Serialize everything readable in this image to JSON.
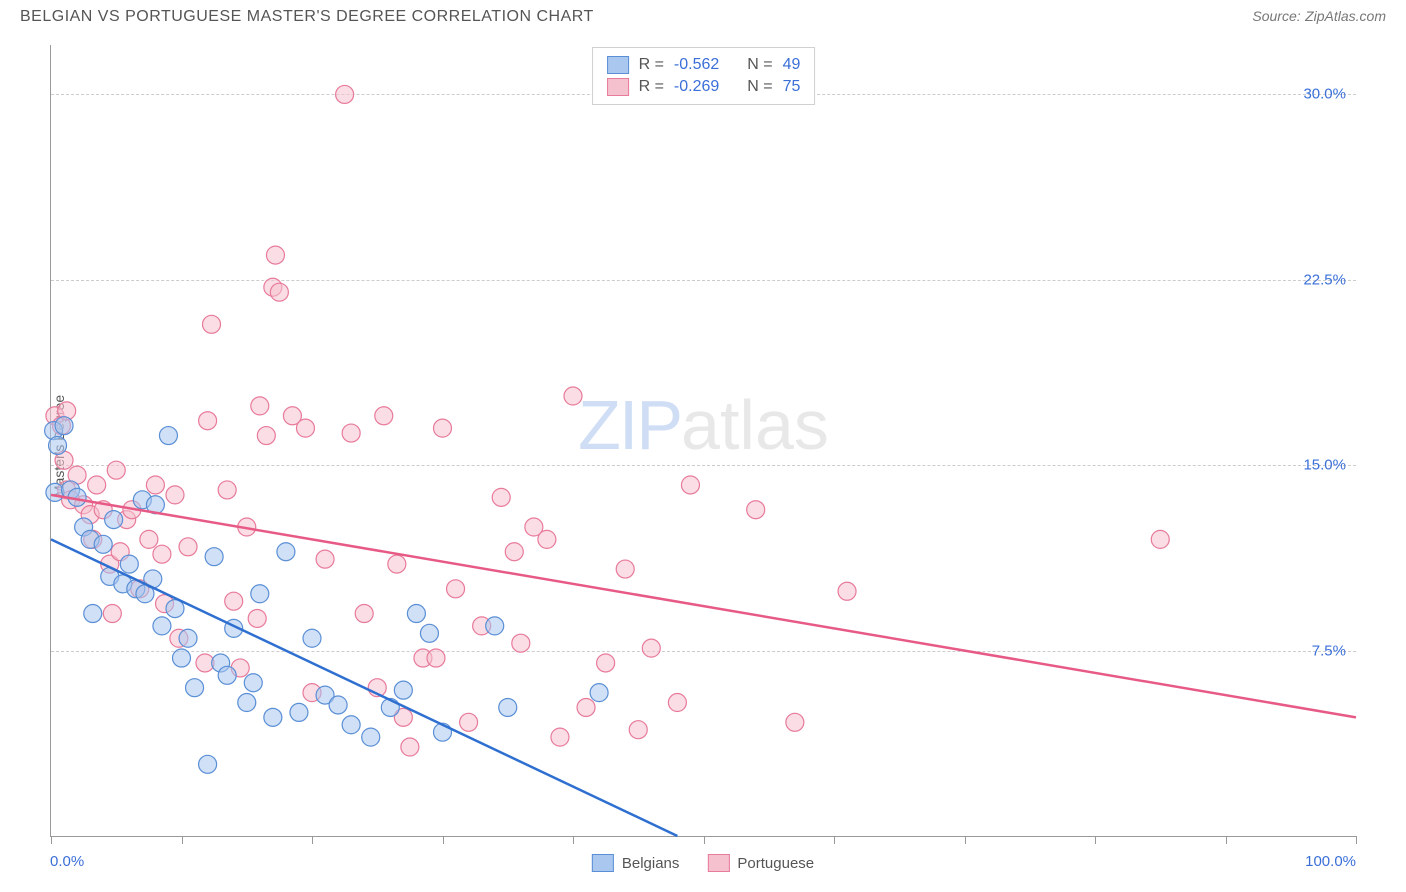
{
  "title": "BELGIAN VS PORTUGUESE MASTER'S DEGREE CORRELATION CHART",
  "source_label": "Source:",
  "source_name": "ZipAtlas.com",
  "ylabel": "Master's Degree",
  "watermark_zip": "ZIP",
  "watermark_atlas": "atlas",
  "chart": {
    "type": "scatter",
    "xlim": [
      0,
      100
    ],
    "ylim": [
      0,
      32
    ],
    "x_start_label": "0.0%",
    "x_end_label": "100.0%",
    "y_ticks": [
      {
        "v": 7.5,
        "label": "7.5%"
      },
      {
        "v": 15.0,
        "label": "15.0%"
      },
      {
        "v": 22.5,
        "label": "22.5%"
      },
      {
        "v": 30.0,
        "label": "30.0%"
      }
    ],
    "x_tick_step": 10,
    "background_color": "#ffffff",
    "grid_color": "#cccccc",
    "point_radius": 9,
    "point_opacity": 0.55,
    "series": [
      {
        "name": "Belgians",
        "color_fill": "#a9c7ef",
        "color_stroke": "#5a8fd6",
        "reg_color": "#2e6fd0",
        "R": "-0.562",
        "N": "49",
        "reg_line": {
          "x1": 0,
          "y1": 12.0,
          "x2": 48,
          "y2": 0
        },
        "points": [
          [
            0.2,
            16.4
          ],
          [
            0.5,
            15.8
          ],
          [
            0.3,
            13.9
          ],
          [
            1.0,
            16.6
          ],
          [
            1.5,
            14.0
          ],
          [
            2.0,
            13.7
          ],
          [
            2.5,
            12.5
          ],
          [
            3.0,
            12.0
          ],
          [
            3.2,
            9.0
          ],
          [
            4.0,
            11.8
          ],
          [
            4.5,
            10.5
          ],
          [
            4.8,
            12.8
          ],
          [
            5.5,
            10.2
          ],
          [
            6.0,
            11.0
          ],
          [
            6.5,
            10.0
          ],
          [
            7.0,
            13.6
          ],
          [
            7.2,
            9.8
          ],
          [
            7.8,
            10.4
          ],
          [
            8.0,
            13.4
          ],
          [
            8.5,
            8.5
          ],
          [
            9.0,
            16.2
          ],
          [
            9.5,
            9.2
          ],
          [
            10.0,
            7.2
          ],
          [
            10.5,
            8.0
          ],
          [
            11.0,
            6.0
          ],
          [
            12.0,
            2.9
          ],
          [
            12.5,
            11.3
          ],
          [
            13.0,
            7.0
          ],
          [
            13.5,
            6.5
          ],
          [
            14.0,
            8.4
          ],
          [
            15.0,
            5.4
          ],
          [
            15.5,
            6.2
          ],
          [
            16.0,
            9.8
          ],
          [
            17.0,
            4.8
          ],
          [
            18.0,
            11.5
          ],
          [
            19.0,
            5.0
          ],
          [
            20.0,
            8.0
          ],
          [
            21.0,
            5.7
          ],
          [
            22.0,
            5.3
          ],
          [
            23.0,
            4.5
          ],
          [
            24.5,
            4.0
          ],
          [
            26.0,
            5.2
          ],
          [
            27.0,
            5.9
          ],
          [
            28.0,
            9.0
          ],
          [
            29.0,
            8.2
          ],
          [
            30.0,
            4.2
          ],
          [
            34.0,
            8.5
          ],
          [
            35.0,
            5.2
          ],
          [
            42.0,
            5.8
          ]
        ]
      },
      {
        "name": "Portuguese",
        "color_fill": "#f6c1cf",
        "color_stroke": "#e87a9a",
        "reg_color": "#e85a86",
        "R": "-0.269",
        "N": "75",
        "reg_line": {
          "x1": 0,
          "y1": 13.8,
          "x2": 100,
          "y2": 4.8
        },
        "points": [
          [
            0.3,
            17.0
          ],
          [
            0.8,
            16.6
          ],
          [
            1.0,
            15.2
          ],
          [
            1.2,
            14.0
          ],
          [
            1.2,
            17.2
          ],
          [
            1.5,
            13.6
          ],
          [
            2.0,
            14.6
          ],
          [
            2.5,
            13.4
          ],
          [
            3.0,
            13.0
          ],
          [
            3.2,
            12.0
          ],
          [
            3.5,
            14.2
          ],
          [
            4.0,
            13.2
          ],
          [
            4.5,
            11.0
          ],
          [
            4.7,
            9.0
          ],
          [
            5.0,
            14.8
          ],
          [
            5.3,
            11.5
          ],
          [
            5.8,
            12.8
          ],
          [
            6.2,
            13.2
          ],
          [
            6.8,
            10.0
          ],
          [
            7.5,
            12.0
          ],
          [
            8.0,
            14.2
          ],
          [
            8.5,
            11.4
          ],
          [
            8.7,
            9.4
          ],
          [
            9.5,
            13.8
          ],
          [
            9.8,
            8.0
          ],
          [
            10.5,
            11.7
          ],
          [
            11.8,
            7.0
          ],
          [
            12.0,
            16.8
          ],
          [
            12.3,
            20.7
          ],
          [
            13.5,
            14.0
          ],
          [
            14.0,
            9.5
          ],
          [
            14.5,
            6.8
          ],
          [
            15.0,
            12.5
          ],
          [
            15.8,
            8.8
          ],
          [
            16.0,
            17.4
          ],
          [
            16.5,
            16.2
          ],
          [
            17.0,
            22.2
          ],
          [
            17.2,
            23.5
          ],
          [
            17.5,
            22.0
          ],
          [
            18.5,
            17.0
          ],
          [
            19.5,
            16.5
          ],
          [
            20.0,
            5.8
          ],
          [
            21.0,
            11.2
          ],
          [
            22.5,
            30.0
          ],
          [
            23.0,
            16.3
          ],
          [
            24.0,
            9.0
          ],
          [
            25.0,
            6.0
          ],
          [
            25.5,
            17.0
          ],
          [
            26.5,
            11.0
          ],
          [
            27.0,
            4.8
          ],
          [
            27.5,
            3.6
          ],
          [
            28.5,
            7.2
          ],
          [
            29.5,
            7.2
          ],
          [
            30.0,
            16.5
          ],
          [
            31.0,
            10.0
          ],
          [
            32.0,
            4.6
          ],
          [
            33.0,
            8.5
          ],
          [
            34.5,
            13.7
          ],
          [
            35.5,
            11.5
          ],
          [
            36.0,
            7.8
          ],
          [
            37.0,
            12.5
          ],
          [
            38.0,
            12.0
          ],
          [
            39.0,
            4.0
          ],
          [
            40.0,
            17.8
          ],
          [
            41.0,
            5.2
          ],
          [
            42.5,
            7.0
          ],
          [
            44.0,
            10.8
          ],
          [
            45.0,
            4.3
          ],
          [
            46.0,
            7.6
          ],
          [
            48.0,
            5.4
          ],
          [
            49.0,
            14.2
          ],
          [
            54.0,
            13.2
          ],
          [
            57.0,
            4.6
          ],
          [
            61.0,
            9.9
          ],
          [
            85.0,
            12.0
          ]
        ]
      }
    ]
  },
  "legend_stats_prefix_R": "R =",
  "legend_stats_prefix_N": "N ="
}
